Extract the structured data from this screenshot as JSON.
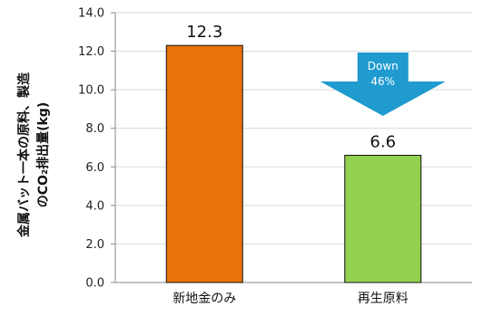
{
  "chart_data": {
    "type": "bar",
    "categories": [
      "新地金のみ",
      "再生原料"
    ],
    "values": [
      12.3,
      6.6
    ],
    "data_labels": [
      "12.3",
      "6.6"
    ],
    "bar_colors": [
      "#E8720C",
      "#92D050"
    ],
    "ylabel_lines": [
      "金属バット一本の原料、製造",
      "のCO₂排出量(kg)"
    ],
    "ylim": [
      0,
      14
    ],
    "yticks": [
      "0.0",
      "2.0",
      "4.0",
      "6.0",
      "8.0",
      "10.0",
      "12.0",
      "14.0"
    ],
    "grid": true,
    "annotation": {
      "lines": [
        "Down",
        "46%"
      ],
      "color": "#1F9BCF",
      "target_category": "再生原料"
    }
  }
}
